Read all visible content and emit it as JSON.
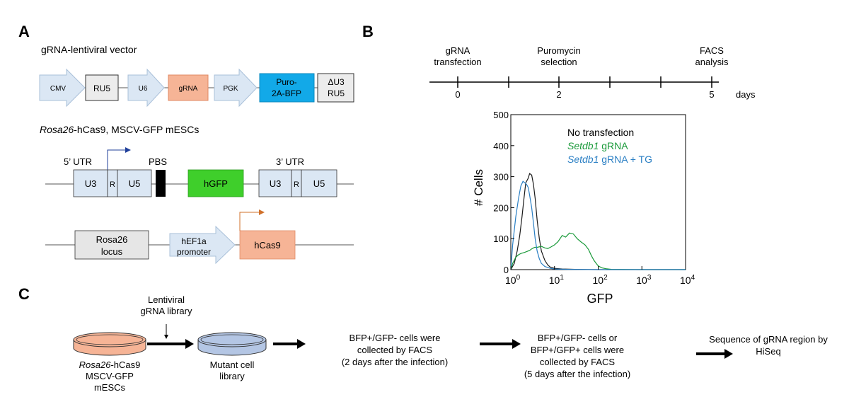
{
  "panels": {
    "a": "A",
    "b": "B",
    "c": "C"
  },
  "panel_a": {
    "title": "gRNA-lentiviral vector",
    "vector": [
      "CMV",
      "RU5",
      "U6",
      "gRNA",
      "PGK"
    ],
    "puro": [
      "Puro-",
      "2A-BFP"
    ],
    "du3": [
      "ΔU3",
      "RU5"
    ],
    "cells_label_italic": "Rosa26",
    "cells_label_rest": "-hCas9, MSCV-GFP mESCs",
    "utr5": "5’ UTR",
    "pbs": "PBS",
    "utr3": "3’ UTR",
    "ltr": [
      "U3",
      "R",
      "U5"
    ],
    "hgfp": "hGFP",
    "rosa": [
      "Rosa26",
      "locus"
    ],
    "promoter": [
      "hEF1a",
      "promoter"
    ],
    "hcas9": "hCas9"
  },
  "panel_b": {
    "timeline_labels": [
      [
        "gRNA",
        "transfection"
      ],
      [
        "Puromycin",
        "selection"
      ],
      [
        "FACS",
        "analysis"
      ]
    ],
    "timeline_ticks": [
      "0",
      "2",
      "5"
    ],
    "days": "days",
    "legend": {
      "no_transfection": "No transfection",
      "setdb1": "Setdb1",
      "grna": " gRNA",
      "grna_tg": " gRNA + TG"
    }
  },
  "chart_data": {
    "type": "line",
    "xlabel": "GFP",
    "ylabel": "# Cells",
    "xscale": "log",
    "xlim": [
      1,
      10000
    ],
    "ylim": [
      0,
      500
    ],
    "yticks": [
      "0",
      "100",
      "200",
      "300",
      "400",
      "500"
    ],
    "xticks": [
      [
        "10",
        "0"
      ],
      [
        "10",
        "1"
      ],
      [
        "10",
        "2"
      ],
      [
        "10",
        "3"
      ],
      [
        "10",
        "4"
      ]
    ],
    "series": [
      {
        "name": "No transfection",
        "color": "#1a1a1a",
        "x": [
          1,
          1.2,
          1.4,
          1.6,
          1.8,
          2.0,
          2.2,
          2.5,
          2.7,
          3.0,
          3.3,
          3.6,
          4.0,
          4.5,
          5.0,
          6.0,
          7.0,
          8.0,
          10,
          15,
          30,
          100,
          1000,
          10000
        ],
        "y": [
          0,
          20,
          60,
          110,
          170,
          230,
          280,
          295,
          310,
          305,
          275,
          230,
          160,
          100,
          60,
          30,
          15,
          8,
          4,
          2,
          1,
          0,
          0,
          0
        ]
      },
      {
        "name": "Setdb1 gRNA",
        "color": "#1a9a3a",
        "x": [
          1,
          1.1,
          1.3,
          1.5,
          1.7,
          2.0,
          2.3,
          2.7,
          3.0,
          3.5,
          4.0,
          5.0,
          6.0,
          7.0,
          8.0,
          10,
          12,
          15,
          18,
          22,
          27,
          33,
          40,
          50,
          60,
          70,
          80,
          90,
          100,
          120,
          150,
          200,
          1000,
          10000
        ],
        "y": [
          0,
          20,
          40,
          48,
          52,
          55,
          58,
          62,
          67,
          72,
          72,
          75,
          70,
          68,
          72,
          80,
          90,
          110,
          105,
          118,
          115,
          100,
          90,
          80,
          65,
          45,
          30,
          20,
          12,
          6,
          3,
          1,
          0,
          0
        ]
      },
      {
        "name": "Setdb1 gRNA + TG",
        "color": "#2a7fc4",
        "x": [
          1,
          1.1,
          1.3,
          1.5,
          1.7,
          1.9,
          2.1,
          2.3,
          2.5,
          2.7,
          3.0,
          3.3,
          3.6,
          4.0,
          4.5,
          5.0,
          6.0,
          8.0,
          10,
          20,
          100,
          10000
        ],
        "y": [
          0,
          80,
          170,
          230,
          270,
          285,
          280,
          275,
          265,
          240,
          200,
          150,
          100,
          60,
          35,
          20,
          10,
          4,
          2,
          1,
          0,
          0
        ]
      }
    ]
  },
  "panel_c": {
    "library_label": [
      "Lentiviral",
      "gRNA library"
    ],
    "dish1_label_italic": "Rosa26",
    "dish1_label_rest": "-hCas9",
    "dish1_lines": [
      "MSCV-GFP",
      "mESCs"
    ],
    "dish2_lines": [
      "Mutant cell",
      "library"
    ],
    "step1": [
      "BFP+/GFP- cells were",
      "collected by FACS",
      "(2 days after the infection)"
    ],
    "step2": [
      "BFP+/GFP- cells or",
      "BFP+/GFP+ cells were",
      "collected by FACS",
      "(5 days after the infection)"
    ],
    "step3": [
      "Sequence of gRNA region by",
      "HiSeq"
    ]
  }
}
